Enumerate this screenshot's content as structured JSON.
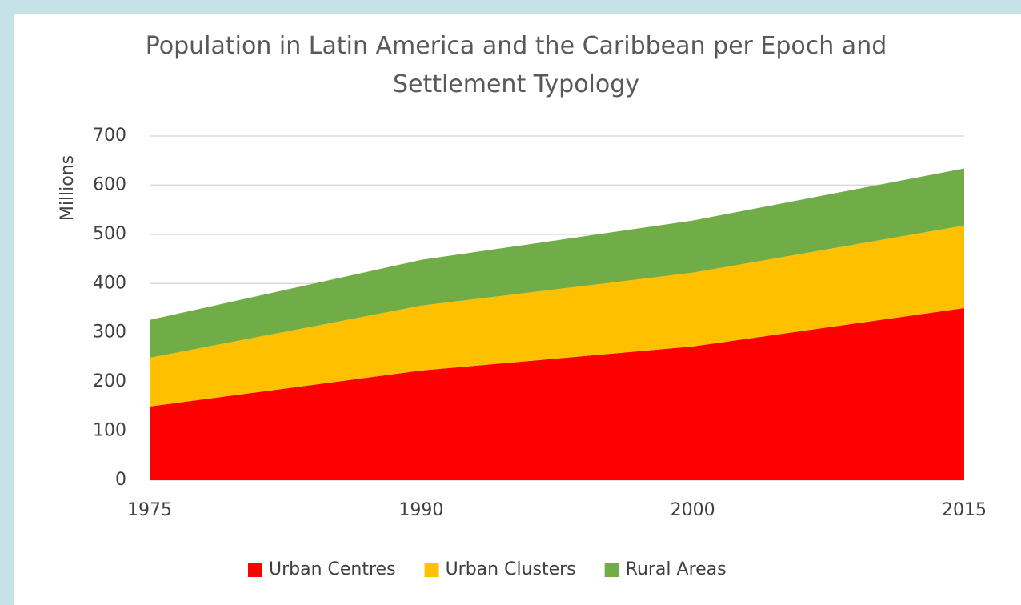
{
  "chart_data": {
    "type": "area",
    "stacked": true,
    "title": "Population in Latin America and the Caribbean per Epoch and Settlement Typology",
    "y_label": "Millions",
    "categories": [
      "1975",
      "1990",
      "2000",
      "2015"
    ],
    "series": [
      {
        "name": "Urban Centres",
        "color": "#ff0000",
        "values": [
          150,
          223,
          272,
          350
        ]
      },
      {
        "name": "Urban Clusters",
        "color": "#ffc000",
        "values": [
          99,
          132,
          150,
          168
        ]
      },
      {
        "name": "Rural Areas",
        "color": "#70ad47",
        "values": [
          77,
          93,
          106,
          116
        ]
      }
    ],
    "ylim": [
      0,
      700
    ],
    "yticks": [
      0,
      100,
      200,
      300,
      400,
      500,
      600,
      700
    ],
    "grid": true,
    "legend": "bottom"
  }
}
